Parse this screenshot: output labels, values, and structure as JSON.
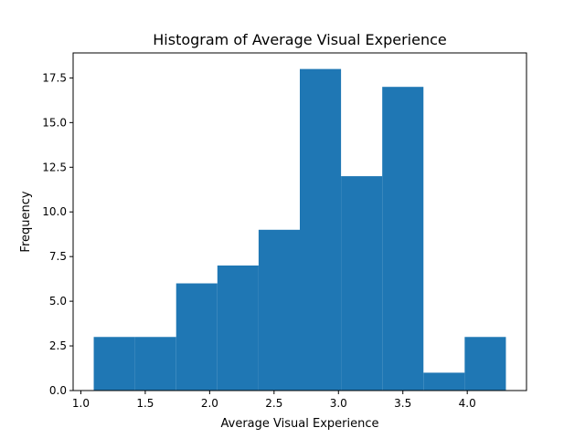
{
  "chart_data": {
    "type": "bar",
    "title": "Histogram of Average Visual Experience",
    "xlabel": "Average Visual Experience",
    "ylabel": "Frequency",
    "bin_edges": [
      1.1,
      1.42,
      1.74,
      2.06,
      2.38,
      2.7,
      3.02,
      3.34,
      3.66,
      3.98,
      4.3
    ],
    "values": [
      3,
      3,
      6,
      7,
      9,
      18,
      12,
      17,
      1,
      3
    ],
    "xlim": [
      0.94,
      4.46
    ],
    "ylim": [
      0,
      18.9
    ],
    "x_ticks": [
      1.0,
      1.5,
      2.0,
      2.5,
      3.0,
      3.5,
      4.0
    ],
    "x_tick_labels": [
      "1.0",
      "1.5",
      "2.0",
      "2.5",
      "3.0",
      "3.5",
      "4.0"
    ],
    "y_ticks": [
      0,
      2.5,
      5,
      7.5,
      10,
      12.5,
      15,
      17.5
    ],
    "y_tick_labels": [
      "0.0",
      "2.5",
      "5.0",
      "7.5",
      "10.0",
      "12.5",
      "15.0",
      "17.5"
    ],
    "bar_color": "#1f77b4",
    "grid": false,
    "legend": "none"
  }
}
